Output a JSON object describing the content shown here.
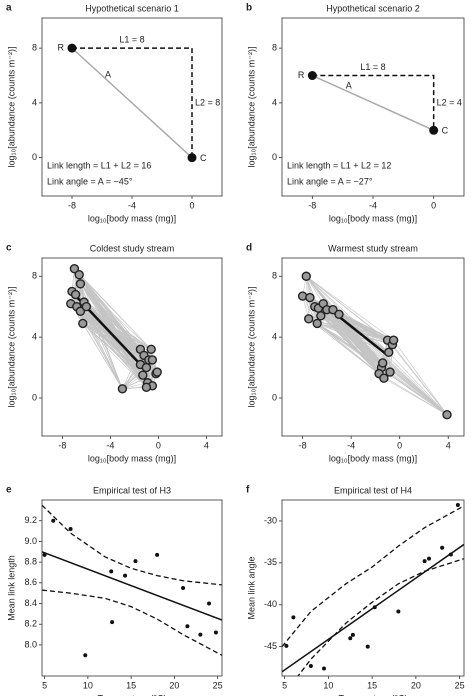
{
  "chart_data": [
    {
      "type": "scenario",
      "panel": "a",
      "title": "Hypothetical scenario 1",
      "x_label": "log₁₀[body mass (mg)]",
      "y_label": "log₁₀[abundance (counts m⁻²)]",
      "xlim": [
        -10,
        2
      ],
      "ylim": [
        -2.8,
        10.2
      ],
      "xticks": [
        -8,
        -4,
        0
      ],
      "yticks": [
        0,
        4,
        8
      ],
      "points": {
        "x": [
          -8,
          0
        ],
        "y": [
          8,
          0
        ],
        "labels": [
          "R",
          "C"
        ]
      },
      "annotations": {
        "l1": "L1 = 8",
        "l2": "L2 = 8",
        "angle": "A",
        "length": "Link length = L1 + L2 = 16",
        "link_angle": "Link angle = A = −45°"
      }
    },
    {
      "type": "scenario",
      "panel": "b",
      "title": "Hypothetical scenario 2",
      "x_label": "log₁₀[body mass (mg)]",
      "y_label": "log₁₀[abundance (counts m⁻²)]",
      "xlim": [
        -10,
        2
      ],
      "ylim": [
        -2.8,
        10.2
      ],
      "xticks": [
        -8,
        -4,
        0
      ],
      "yticks": [
        0,
        4,
        8
      ],
      "points": {
        "x": [
          -8,
          0
        ],
        "y": [
          6,
          2
        ],
        "labels": [
          "R",
          "C"
        ]
      },
      "annotations": {
        "l1": "L1 = 8",
        "l2": "L2 = 4",
        "angle": "A",
        "length": "Link length = L1 + L2 = 12",
        "link_angle": "Link angle = A = −27°"
      }
    },
    {
      "type": "foodweb",
      "panel": "c",
      "title": "Coldest study stream",
      "x_label": "log₁₀[body mass (mg)]",
      "y_label": "log₁₀[abundance (counts m⁻²)]",
      "xlim": [
        -9.7,
        5.3
      ],
      "ylim": [
        -2.5,
        9.2
      ],
      "xticks": [
        -8,
        -4,
        0,
        4
      ],
      "yticks": [
        0,
        4,
        8
      ],
      "x": [
        -7,
        -6.6,
        -6.5,
        -7.2,
        -6.9,
        -7.3,
        -6.8,
        -6.2,
        -6.5,
        -6.3,
        -6,
        -1.5,
        -1.2,
        -0.8,
        -1.5,
        -1,
        -0.6,
        -0.5,
        -1.3,
        -0.9,
        -0.5,
        -0.2,
        -0.1,
        -1,
        -3
      ],
      "y": [
        8.5,
        8.1,
        7.5,
        7,
        6.8,
        6.2,
        6,
        6.3,
        5.7,
        4.9,
        6,
        3.2,
        2.8,
        2.5,
        2.2,
        2,
        3.2,
        2.5,
        1.5,
        1,
        0.8,
        1.6,
        1.7,
        0.7,
        0.6
      ],
      "fit": {
        "x": [
          -7,
          -1.5
        ],
        "y": [
          6.8,
          2.2
        ]
      }
    },
    {
      "type": "foodweb",
      "panel": "d",
      "title": "Warmest study stream",
      "x_label": "log₁₀[body mass (mg)]",
      "y_label": "log₁₀[abundance (counts m⁻²)]",
      "xlim": [
        -9.7,
        5.3
      ],
      "ylim": [
        -2.5,
        9.2
      ],
      "xticks": [
        -8,
        -4,
        0,
        4
      ],
      "yticks": [
        0,
        4,
        8
      ],
      "x": [
        -7.7,
        -8,
        -7.4,
        -7,
        -7.5,
        -6.7,
        -6.3,
        -6,
        -6.5,
        -6.8,
        -5.5,
        -5,
        -1,
        -0.6,
        -0.9,
        -0.5,
        -1.5,
        -1.7,
        -1.3,
        -0.8,
        -1.4,
        3.9
      ],
      "y": [
        8,
        6.7,
        6.6,
        6,
        5.2,
        5.9,
        6.2,
        5.8,
        5.4,
        4.9,
        5.8,
        5.5,
        3.8,
        3.5,
        3,
        3.8,
        2,
        1.6,
        1.3,
        1.7,
        2.3,
        -1.1
      ],
      "fit": {
        "x": [
          -6.5,
          -1
        ],
        "y": [
          6.3,
          2.8
        ]
      }
    },
    {
      "type": "scatter",
      "panel": "e",
      "title": "Empirical test of H3",
      "x_label": "Temperature (°C)",
      "y_label": "Mean link length",
      "xlim": [
        4.7,
        25.5
      ],
      "ylim": [
        7.7,
        9.4
      ],
      "xticks": [
        5,
        10,
        15,
        20,
        25
      ],
      "yticks": [
        {
          "value": 8,
          "label": "8.0"
        },
        8.2,
        8.4,
        8.6,
        8.8,
        {
          "value": 9,
          "label": "9.0"
        },
        9.2
      ],
      "x": [
        5,
        6,
        8,
        9.7,
        12.7,
        12.8,
        14.3,
        15.5,
        18,
        21,
        21.5,
        23,
        24,
        24.8
      ],
      "y": [
        8.87,
        9.2,
        9.12,
        7.9,
        8.71,
        8.22,
        8.67,
        8.81,
        8.87,
        8.55,
        8.18,
        8.1,
        8.4,
        8.12
      ],
      "fit": {
        "x": [
          4.7,
          25.5
        ],
        "y": [
          8.9,
          8.24
        ]
      },
      "ci": {
        "x": [
          4.7,
          8,
          12,
          15,
          18,
          21,
          25.5
        ],
        "upper": [
          9.35,
          9.08,
          8.85,
          8.74,
          8.67,
          8.62,
          8.58
        ],
        "lower": [
          8.53,
          8.5,
          8.45,
          8.37,
          8.25,
          8.1,
          7.9
        ]
      }
    },
    {
      "type": "scatter",
      "panel": "f",
      "title": "Empirical test of H4",
      "x_label": "Temperature (°C)",
      "y_label": "Mean link angle",
      "xlim": [
        4.7,
        25.5
      ],
      "ylim": [
        -48.5,
        -27.5
      ],
      "xticks": [
        5,
        10,
        15,
        20,
        25
      ],
      "yticks": [
        -45,
        -40,
        -35,
        -30
      ],
      "x": [
        5.2,
        6,
        8,
        9.5,
        12.5,
        12.8,
        14.5,
        15.3,
        18,
        21,
        21.5,
        23,
        24,
        24.8
      ],
      "y": [
        -44.9,
        -41.5,
        -47.3,
        -47.6,
        -44,
        -43.6,
        -45,
        -40.3,
        -40.8,
        -34.8,
        -34.5,
        -33.2,
        -34,
        -28.1
      ],
      "fit": {
        "x": [
          4.7,
          25.5
        ],
        "y": [
          -48,
          -32.8
        ]
      },
      "ci": {
        "x": [
          4.7,
          8,
          12,
          15,
          18,
          21,
          25.5
        ],
        "upper": [
          -45,
          -40.8,
          -37.5,
          -35.5,
          -33,
          -30.8,
          -28.2
        ],
        "lower": [
          -51,
          -46.5,
          -42.2,
          -39.7,
          -37.5,
          -36,
          -34.5
        ]
      }
    }
  ]
}
